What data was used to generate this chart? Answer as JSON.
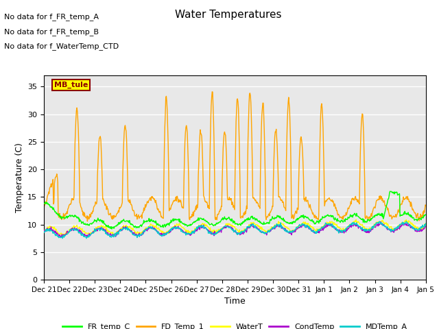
{
  "title": "Water Temperatures",
  "xlabel": "Time",
  "ylabel": "Temperature (C)",
  "ylim": [
    0,
    37
  ],
  "yticks": [
    0,
    5,
    10,
    15,
    20,
    25,
    30,
    35
  ],
  "bg_color": "#ffffff",
  "plot_bg_color": "#e8e8e8",
  "grid_color": "#ffffff",
  "annotations": [
    "No data for f_FR_temp_A",
    "No data for f_FR_temp_B",
    "No data for f_WaterTemp_CTD"
  ],
  "mb_tule_label": "MB_tule",
  "legend": [
    {
      "label": "FR_temp_C",
      "color": "#00ff00"
    },
    {
      "label": "FD_Temp_1",
      "color": "#ffa500"
    },
    {
      "label": "WaterT",
      "color": "#ffff00"
    },
    {
      "label": "CondTemp",
      "color": "#aa00cc"
    },
    {
      "label": "MDTemp_A",
      "color": "#00cccc"
    }
  ],
  "xticklabels": [
    "Dec 21",
    "Dec 22",
    "Dec 23",
    "Dec 24",
    "Dec 25",
    "Dec 26",
    "Dec 27",
    "Dec 28",
    "Dec 29",
    "Dec 30",
    "Dec 31",
    "Jan 1",
    "Jan 2",
    "Jan 3",
    "Jan 4",
    "Jan 5"
  ],
  "n_points": 800
}
